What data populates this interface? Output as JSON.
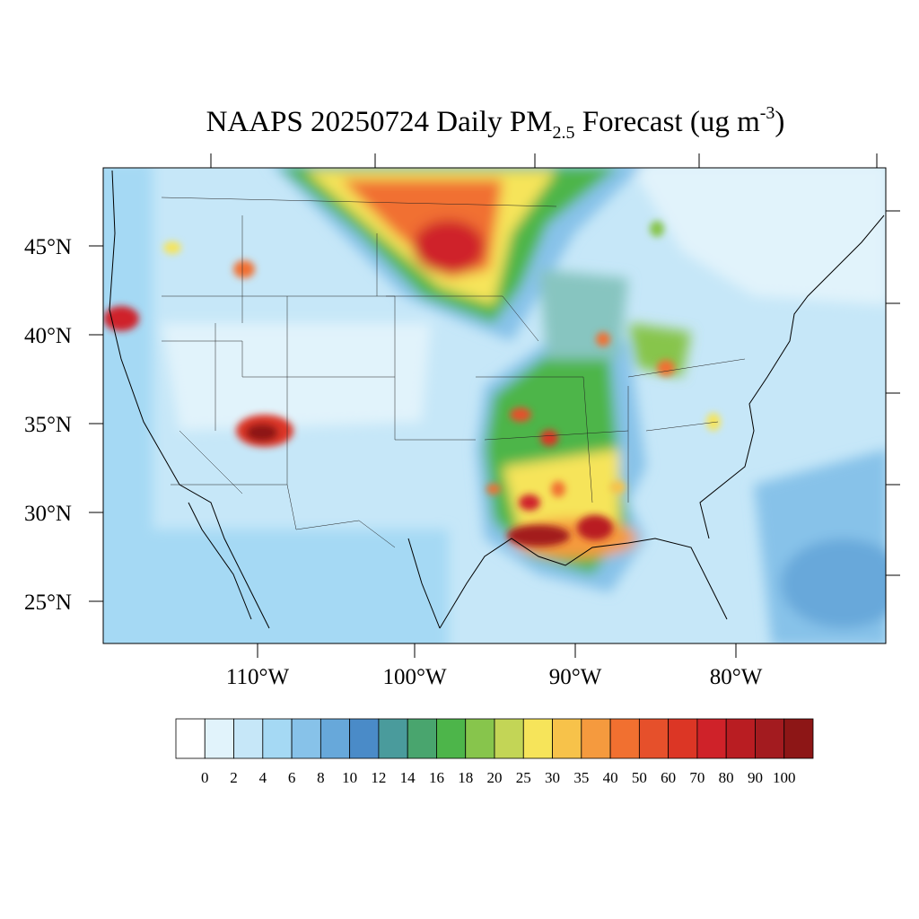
{
  "map": {
    "title": {
      "main": "NAAPS 20250724 Daily PM",
      "subscript": "2.5",
      "middle": " Forecast (ug m",
      "superscript": "-3",
      "end": ")"
    },
    "lat_labels": [
      "45°N",
      "40°N",
      "35°N",
      "30°N",
      "25°N"
    ],
    "lon_labels": [
      "110°W",
      "100°W",
      "90°W",
      "80°W"
    ],
    "colorbar": {
      "labels": [
        "0",
        "2",
        "4",
        "6",
        "8",
        "10",
        "12",
        "14",
        "16",
        "18",
        "20",
        "25",
        "30",
        "35",
        "40",
        "50",
        "60",
        "70",
        "80",
        "90",
        "100"
      ],
      "colors": [
        "#ffffff",
        "#e1f3fb",
        "#c6e7f8",
        "#a5d9f4",
        "#87c2e9",
        "#67a8da",
        "#4a8bc8",
        "#4a9b9c",
        "#49a56e",
        "#4db54a",
        "#87c54c",
        "#c3d556",
        "#f6e45a",
        "#f7c24a",
        "#f59a3e",
        "#f17030",
        "#e6502b",
        "#dc3625",
        "#cf2229",
        "#b91d22",
        "#a31b1f",
        "#8d1616"
      ]
    }
  }
}
